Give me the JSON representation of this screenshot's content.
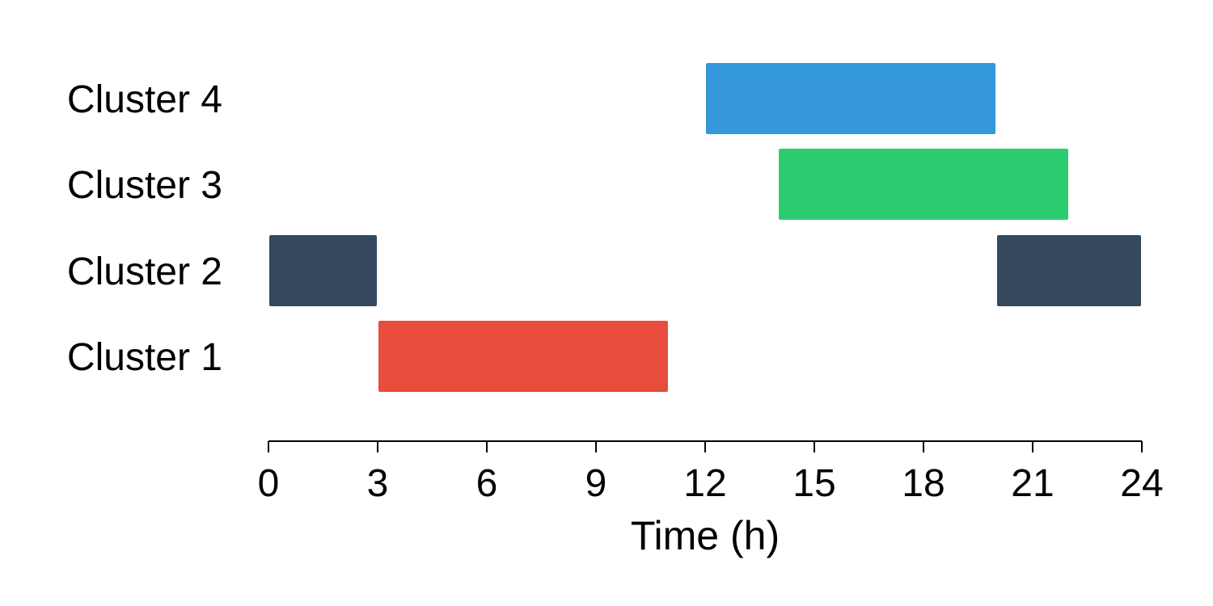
{
  "chart_data": {
    "type": "bar",
    "orientation": "horizontal-timeline",
    "title": "",
    "xlabel": "Time (h)",
    "ylabel": "",
    "xlim": [
      0,
      24
    ],
    "xticks": [
      0,
      3,
      6,
      9,
      12,
      15,
      18,
      21,
      24
    ],
    "grid": false,
    "categories": [
      "Cluster 1",
      "Cluster 2",
      "Cluster 3",
      "Cluster 4"
    ],
    "series": [
      {
        "category": "Cluster 1",
        "color": "#e74c3c",
        "intervals": [
          [
            3,
            11
          ]
        ]
      },
      {
        "category": "Cluster 2",
        "color": "#34495e",
        "intervals": [
          [
            0,
            3
          ],
          [
            20,
            24
          ]
        ]
      },
      {
        "category": "Cluster 3",
        "color": "#2ecc71",
        "intervals": [
          [
            14,
            22
          ]
        ]
      },
      {
        "category": "Cluster 4",
        "color": "#3498db",
        "intervals": [
          [
            12,
            20
          ]
        ]
      }
    ]
  }
}
